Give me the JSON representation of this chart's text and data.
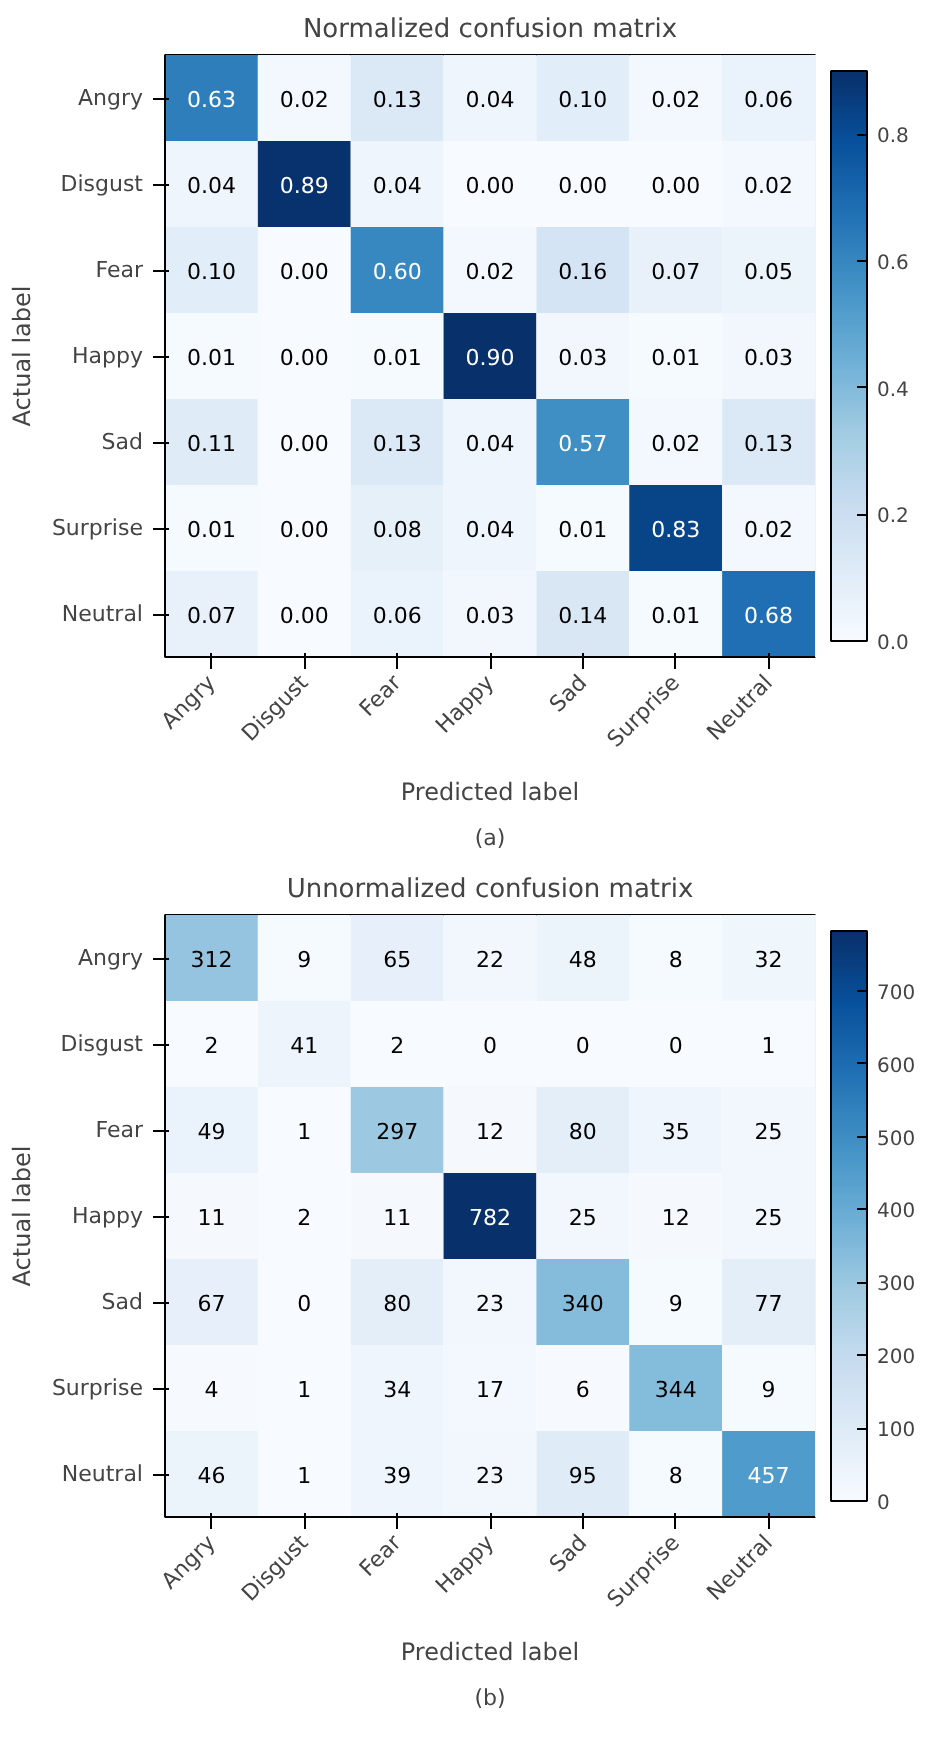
{
  "chart_data": [
    {
      "type": "heatmap",
      "title": "Normalized confusion matrix",
      "xlabel": "Predicted label",
      "ylabel": "Actual label",
      "categories": [
        "Angry",
        "Disgust",
        "Fear",
        "Happy",
        "Sad",
        "Surprise",
        "Neutral"
      ],
      "y_categories": [
        "Angry",
        "Disgust",
        "Fear",
        "Happy",
        "Sad",
        "Surprise",
        "Neutral"
      ],
      "cells": [
        [
          0.63,
          0.02,
          0.13,
          0.04,
          0.1,
          0.02,
          0.06
        ],
        [
          0.04,
          0.89,
          0.04,
          0.0,
          0.0,
          0.0,
          0.02
        ],
        [
          0.1,
          0.0,
          0.6,
          0.02,
          0.16,
          0.07,
          0.05
        ],
        [
          0.01,
          0.0,
          0.01,
          0.9,
          0.03,
          0.01,
          0.03
        ],
        [
          0.11,
          0.0,
          0.13,
          0.04,
          0.57,
          0.02,
          0.13
        ],
        [
          0.01,
          0.0,
          0.08,
          0.04,
          0.01,
          0.83,
          0.02
        ],
        [
          0.07,
          0.0,
          0.06,
          0.03,
          0.14,
          0.01,
          0.68
        ]
      ],
      "cell_labels": [
        [
          "0.63",
          "0.02",
          "0.13",
          "0.04",
          "0.10",
          "0.02",
          "0.06"
        ],
        [
          "0.04",
          "0.89",
          "0.04",
          "0.00",
          "0.00",
          "0.00",
          "0.02"
        ],
        [
          "0.10",
          "0.00",
          "0.60",
          "0.02",
          "0.16",
          "0.07",
          "0.05"
        ],
        [
          "0.01",
          "0.00",
          "0.01",
          "0.90",
          "0.03",
          "0.01",
          "0.03"
        ],
        [
          "0.11",
          "0.00",
          "0.13",
          "0.04",
          "0.57",
          "0.02",
          "0.13"
        ],
        [
          "0.01",
          "0.00",
          "0.08",
          "0.04",
          "0.01",
          "0.83",
          "0.02"
        ],
        [
          "0.07",
          "0.00",
          "0.06",
          "0.03",
          "0.14",
          "0.01",
          "0.68"
        ]
      ],
      "clim": [
        0,
        0.9
      ],
      "cticks": [
        {
          "value": 0,
          "label": "0.0"
        },
        0.2,
        0.4,
        0.6,
        0.8
      ],
      "annotations": [
        "(a)"
      ]
    },
    {
      "type": "heatmap",
      "title": "Unnormalized confusion matrix",
      "xlabel": "Predicted label",
      "ylabel": "Actual label",
      "categories": [
        "Angry",
        "Disgust",
        "Fear",
        "Happy",
        "Sad",
        "Surprise",
        "Neutral"
      ],
      "y_categories": [
        "Angry",
        "Disgust",
        "Fear",
        "Happy",
        "Sad",
        "Surprise",
        "Neutral"
      ],
      "cells": [
        [
          312,
          9,
          65,
          22,
          48,
          8,
          32
        ],
        [
          2,
          41,
          2,
          0,
          0,
          0,
          1
        ],
        [
          49,
          1,
          297,
          12,
          80,
          35,
          25
        ],
        [
          11,
          2,
          11,
          782,
          25,
          12,
          25
        ],
        [
          67,
          0,
          80,
          23,
          340,
          9,
          77
        ],
        [
          4,
          1,
          34,
          17,
          6,
          344,
          9
        ],
        [
          46,
          1,
          39,
          23,
          95,
          8,
          457
        ]
      ],
      "cell_labels": [
        [
          "312",
          "9",
          "65",
          "22",
          "48",
          "8",
          "32"
        ],
        [
          "2",
          "41",
          "2",
          "0",
          "0",
          "0",
          "1"
        ],
        [
          "49",
          "1",
          "297",
          "12",
          "80",
          "35",
          "25"
        ],
        [
          "11",
          "2",
          "11",
          "782",
          "25",
          "12",
          "25"
        ],
        [
          "67",
          "0",
          "80",
          "23",
          "340",
          "9",
          "77"
        ],
        [
          "4",
          "1",
          "34",
          "17",
          "6",
          "344",
          "9"
        ],
        [
          "46",
          "1",
          "39",
          "23",
          "95",
          "8",
          "457"
        ]
      ],
      "clim": [
        0,
        782
      ],
      "cticks": [
        0,
        100,
        200,
        300,
        400,
        500,
        600,
        700
      ],
      "annotations": [
        "(b)"
      ]
    }
  ]
}
